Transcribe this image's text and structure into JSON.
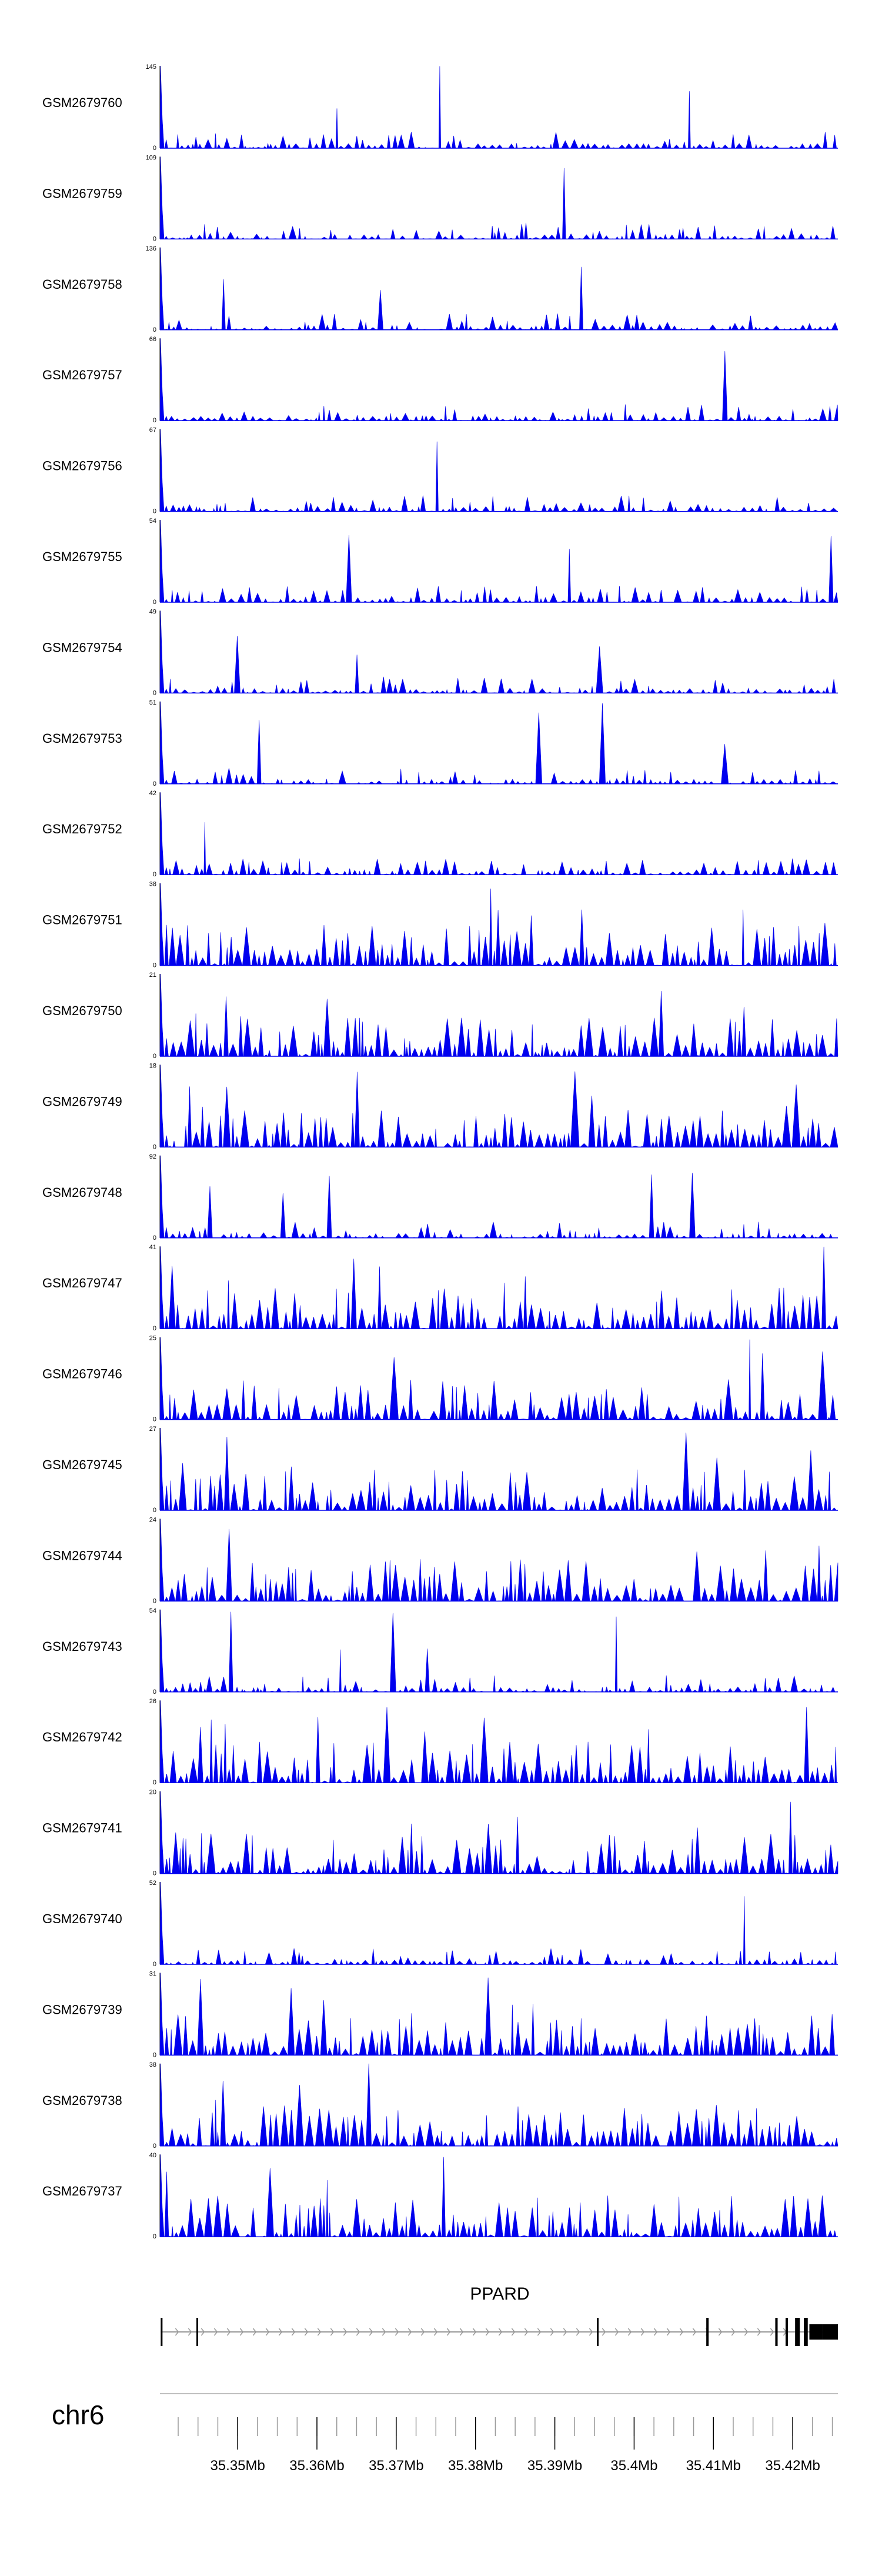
{
  "figure": {
    "title": "",
    "colors": {
      "signal": "#0000ee",
      "axis": "#000000",
      "gene": "#000000",
      "intron": "#999999",
      "ruler": "#aaaaaa",
      "tick": "#999999",
      "background": "#ffffff"
    }
  },
  "chart_data": {
    "type": "area",
    "title": "",
    "xlabel": "",
    "ylabel": "",
    "chromosome": "chr6",
    "x_unit": "Mb",
    "xlim": [
      35.3402,
      35.4257
    ],
    "tracks": [
      {
        "name": "GSM2679760",
        "ymax": "145",
        "ymin": "0",
        "seed": 11
      },
      {
        "name": "GSM2679759",
        "ymax": "109",
        "ymin": "0",
        "seed": 23
      },
      {
        "name": "GSM2679758",
        "ymax": "136",
        "ymin": "0",
        "seed": 37
      },
      {
        "name": "GSM2679757",
        "ymax": "66",
        "ymin": "0",
        "seed": 41
      },
      {
        "name": "GSM2679756",
        "ymax": "67",
        "ymin": "0",
        "seed": 53
      },
      {
        "name": "GSM2679755",
        "ymax": "54",
        "ymin": "0",
        "seed": 61
      },
      {
        "name": "GSM2679754",
        "ymax": "49",
        "ymin": "0",
        "seed": 73
      },
      {
        "name": "GSM2679753",
        "ymax": "51",
        "ymin": "0",
        "seed": 89
      },
      {
        "name": "GSM2679752",
        "ymax": "42",
        "ymin": "0",
        "seed": 97
      },
      {
        "name": "GSM2679751",
        "ymax": "38",
        "ymin": "0",
        "seed": 101
      },
      {
        "name": "GSM2679750",
        "ymax": "21",
        "ymin": "0",
        "seed": 113
      },
      {
        "name": "GSM2679749",
        "ymax": "18",
        "ymin": "0",
        "seed": 127
      },
      {
        "name": "GSM2679748",
        "ymax": "92",
        "ymin": "0",
        "seed": 131
      },
      {
        "name": "GSM2679747",
        "ymax": "41",
        "ymin": "0",
        "seed": 149
      },
      {
        "name": "GSM2679746",
        "ymax": "25",
        "ymin": "0",
        "seed": 151
      },
      {
        "name": "GSM2679745",
        "ymax": "27",
        "ymin": "0",
        "seed": 163
      },
      {
        "name": "GSM2679744",
        "ymax": "24",
        "ymin": "0",
        "seed": 173
      },
      {
        "name": "GSM2679743",
        "ymax": "54",
        "ymin": "0",
        "seed": 181
      },
      {
        "name": "GSM2679742",
        "ymax": "26",
        "ymin": "0",
        "seed": 191
      },
      {
        "name": "GSM2679741",
        "ymax": "20",
        "ymin": "0",
        "seed": 199
      },
      {
        "name": "GSM2679740",
        "ymax": "52",
        "ymin": "0",
        "seed": 211
      },
      {
        "name": "GSM2679739",
        "ymax": "31",
        "ymin": "0",
        "seed": 223
      },
      {
        "name": "GSM2679738",
        "ymax": "38",
        "ymin": "0",
        "seed": 227
      },
      {
        "name": "GSM2679737",
        "ymax": "40",
        "ymin": "0",
        "seed": 229
      }
    ],
    "gene": {
      "name": "PPARD",
      "strand": "+",
      "start_mb": 35.3403,
      "end_mb": 35.4257,
      "exons_mb": [
        [
          35.3403,
          35.3404
        ],
        [
          35.3448,
          35.345
        ],
        [
          35.3953,
          35.3955
        ],
        [
          35.4091,
          35.4094
        ],
        [
          35.4178,
          35.4181
        ],
        [
          35.4191,
          35.4194
        ],
        [
          35.4203,
          35.4209
        ],
        [
          35.4214,
          35.4219
        ],
        [
          35.4221,
          35.4237
        ],
        [
          35.4237,
          35.4257
        ]
      ]
    },
    "axis": {
      "minor_tick_step_mb": 0.0025,
      "ticks": [
        {
          "value": 35.35,
          "label": "35.35Mb"
        },
        {
          "value": 35.36,
          "label": "35.36Mb"
        },
        {
          "value": 35.37,
          "label": "35.37Mb"
        },
        {
          "value": 35.38,
          "label": "35.38Mb"
        },
        {
          "value": 35.39,
          "label": "35.39Mb"
        },
        {
          "value": 35.4,
          "label": "35.4Mb"
        },
        {
          "value": 35.41,
          "label": "35.41Mb"
        },
        {
          "value": 35.42,
          "label": "35.42Mb"
        }
      ]
    }
  }
}
